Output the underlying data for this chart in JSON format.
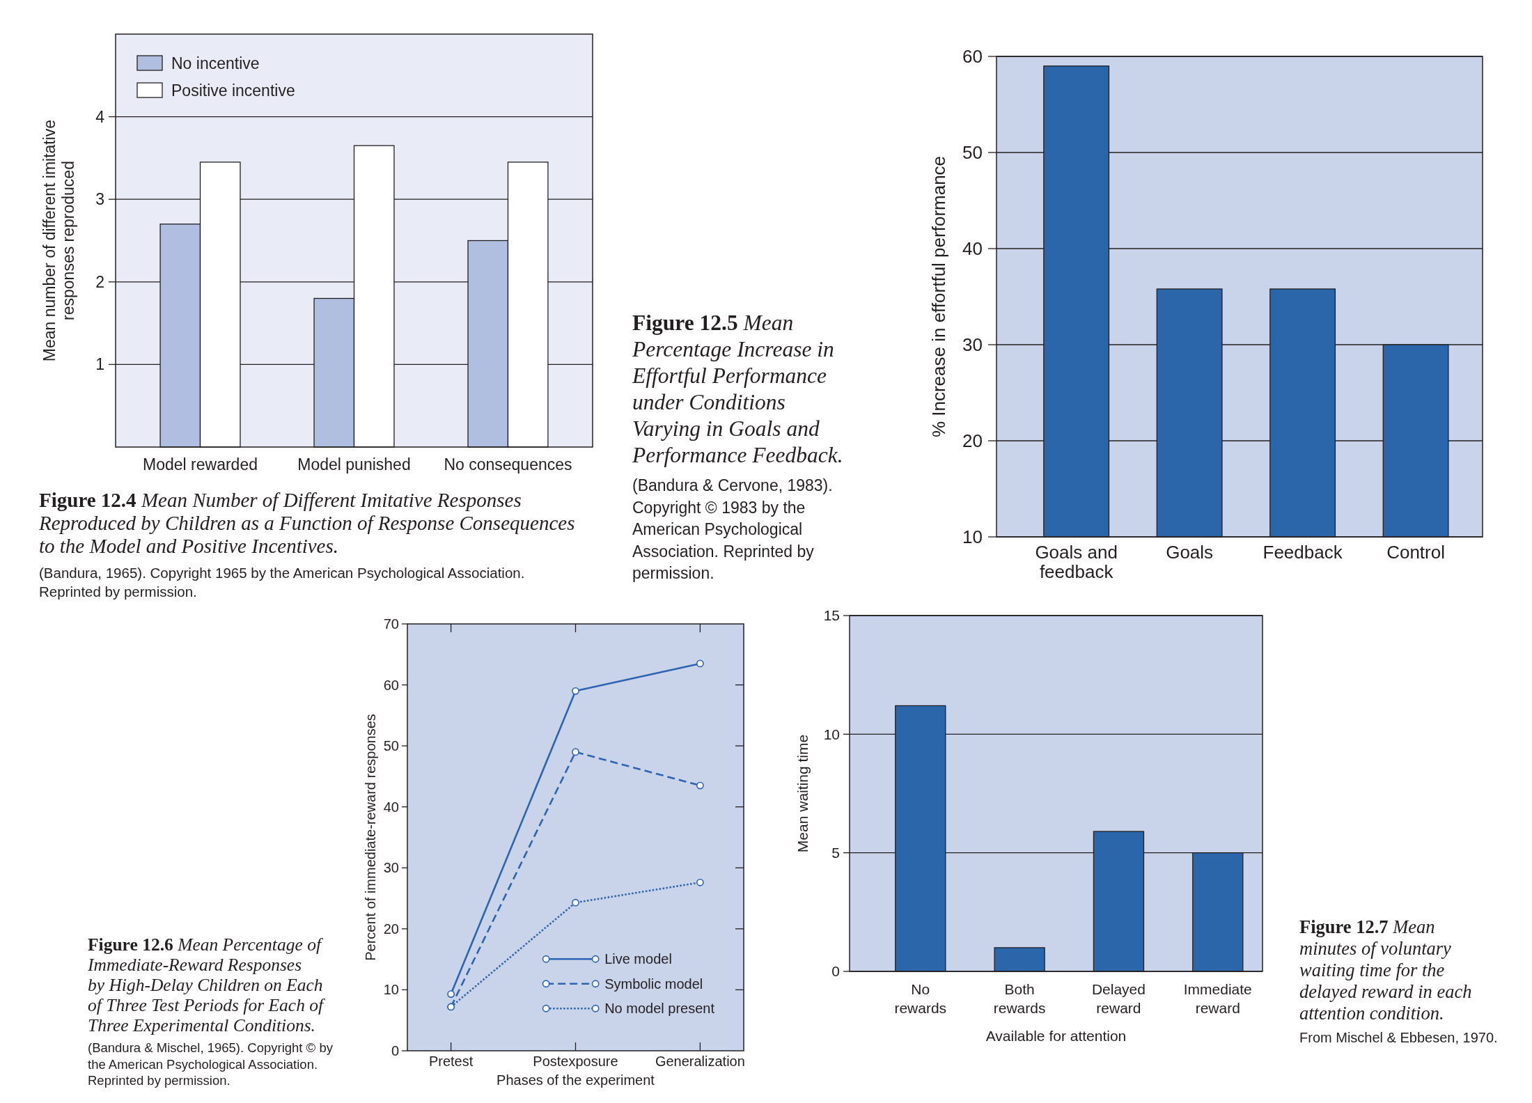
{
  "chart_data": [
    {
      "type": "bar",
      "annotations": [
        "Figure 12.4 Mean Number of Different Imitative Responses\nReproduced by Children as a Function of Response Consequences\nto the Model and Positive Incentives.",
        "(Bandura, 1965). Copyright 1965 by the American Psychological Association.\nReprinted by permission."
      ],
      "ylabel": "Mean number of different imitative\nresponses reproduced",
      "categories": [
        "Model rewarded",
        "Model punished",
        "No consequences"
      ],
      "series": [
        {
          "name": "No incentive",
          "color": "#b0bfe0",
          "values": [
            2.7,
            1.8,
            2.5
          ]
        },
        {
          "name": "Positive incentive",
          "color": "#ffffff",
          "values": [
            3.45,
            3.65,
            3.45
          ]
        }
      ],
      "ylim": [
        0,
        5
      ],
      "yticks": [
        1,
        2,
        3,
        4
      ],
      "grid": "y",
      "legend": "top left"
    },
    {
      "type": "bar",
      "annotations": [
        "Figure 12.5 Mean\nPercentage Increase in\nEffortful Performance\nunder Conditions\nVarying in Goals and\nPerformance Feedback.",
        "(Bandura & Cervone, 1983).\nCopyright © 1983 by the\nAmerican Psychological\nAssociation. Reprinted by\npermission."
      ],
      "ylabel": "% Increase in effortful performance",
      "categories": [
        "Goals and\nfeedback",
        "Goals",
        "Feedback",
        "Control"
      ],
      "values": [
        59,
        35.8,
        35.8,
        30
      ],
      "color": "#2b65aa",
      "ylim": [
        10,
        60
      ],
      "yticks": [
        10,
        20,
        30,
        40,
        50,
        60
      ],
      "grid": "y"
    },
    {
      "type": "line",
      "annotations": [
        "Figure 12.6 Mean Percentage of\nImmediate-Reward Responses\nby High-Delay Children on Each\nof Three Test Periods for Each of\nThree Experimental Conditions.",
        "(Bandura & Mischel, 1965). Copyright © by\nthe American Psychological Association.\nReprinted by permission."
      ],
      "xlabel": "Phases of the experiment",
      "ylabel": "Percent of immediate-reward responses",
      "categories": [
        "Pretest",
        "Postexposure",
        "Generalization"
      ],
      "series": [
        {
          "name": "Live model",
          "color": "#2d63b0",
          "line_style": "solid",
          "values": [
            9.3,
            59,
            63.5
          ]
        },
        {
          "name": "Symbolic model",
          "color": "#2d63b0",
          "line_style": "dashed",
          "values": [
            7.2,
            49,
            43.5
          ]
        },
        {
          "name": "No model present",
          "color": "#2d63b0",
          "line_style": "dotted",
          "values": [
            7.2,
            24.3,
            27.6
          ]
        }
      ],
      "ylim": [
        0,
        70
      ],
      "yticks": [
        0,
        10,
        20,
        30,
        40,
        50,
        60,
        70
      ],
      "marker": "circle",
      "legend": "bottom right"
    },
    {
      "type": "bar",
      "annotations": [
        "Figure 12.7 Mean\nminutes of voluntary\nwaiting time for the\ndelayed reward in each\nattention condition.",
        "From Mischel & Ebbesen, 1970."
      ],
      "xlabel": "Available for attention",
      "ylabel": "Mean waiting time",
      "categories": [
        "No\nrewards",
        "Both\nrewards",
        "Delayed\nreward",
        "Immediate\nreward"
      ],
      "values": [
        11.2,
        1,
        5.9,
        5
      ],
      "color": "#2b65aa",
      "ylim": [
        0,
        15
      ],
      "yticks": [
        0,
        5,
        10,
        15
      ],
      "grid": "y"
    }
  ]
}
